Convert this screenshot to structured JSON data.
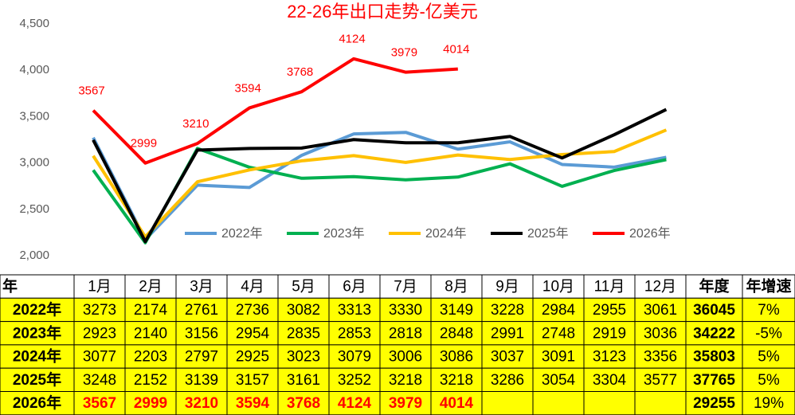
{
  "chart_data": {
    "type": "line",
    "title": "22-26年出口走势-亿美元",
    "categories": [
      "1月",
      "2月",
      "3月",
      "4月",
      "5月",
      "6月",
      "7月",
      "8月",
      "9月",
      "10月",
      "11月",
      "12月"
    ],
    "ylim": [
      2000,
      4500
    ],
    "yticks": [
      {
        "value": 2000,
        "label": "2,000"
      },
      {
        "value": 2500,
        "label": "2,500"
      },
      {
        "value": 3000,
        "label": "3,000"
      },
      {
        "value": 3500,
        "label": "3,500"
      },
      {
        "value": 4000,
        "label": "4,000"
      },
      {
        "value": 4500,
        "label": "4,500"
      }
    ],
    "series": [
      {
        "name": "2022年",
        "color": "#5b9bd5",
        "values": [
          3273,
          2174,
          2761,
          2736,
          3082,
          3313,
          3330,
          3149,
          3228,
          2984,
          2955,
          3061
        ]
      },
      {
        "name": "2023年",
        "color": "#00b050",
        "values": [
          2923,
          2140,
          3156,
          2954,
          2835,
          2853,
          2818,
          2848,
          2991,
          2748,
          2919,
          3036
        ]
      },
      {
        "name": "2024年",
        "color": "#ffc000",
        "values": [
          3077,
          2203,
          2797,
          2925,
          3023,
          3079,
          3006,
          3086,
          3037,
          3091,
          3123,
          3356
        ]
      },
      {
        "name": "2025年",
        "color": "#000000",
        "values": [
          3248,
          2152,
          3139,
          3157,
          3161,
          3252,
          3218,
          3218,
          3286,
          3054,
          3304,
          3577
        ]
      },
      {
        "name": "2026年",
        "color": "#ff0000",
        "values": [
          3567,
          2999,
          3210,
          3594,
          3768,
          4124,
          3979,
          4014,
          null,
          null,
          null,
          null
        ],
        "data_labels": true
      }
    ]
  },
  "table": {
    "year_header": "年",
    "total_header": "年度",
    "growth_header": "年增速",
    "totals": [
      "36045",
      "34222",
      "35803",
      "37765",
      "29255"
    ],
    "growth": [
      "7%",
      "-5%",
      "5%",
      "5%",
      "19%"
    ]
  }
}
